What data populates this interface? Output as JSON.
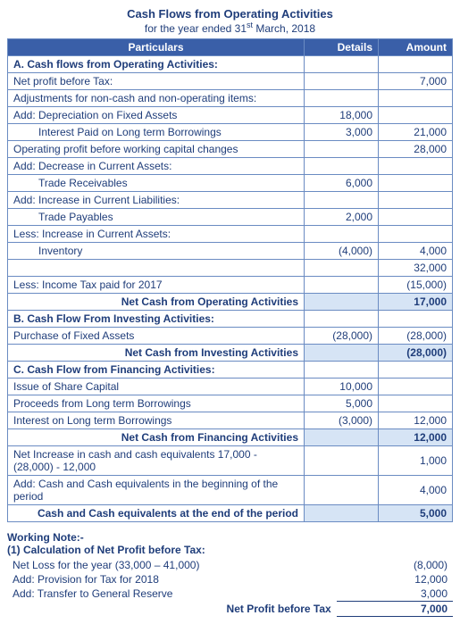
{
  "title": "Cash Flows from Operating Activities",
  "subtitle_prefix": "for the year ended 31",
  "subtitle_suffix": " March, 2018",
  "headers": {
    "particulars": "Particulars",
    "details": "Details",
    "amount": "Amount"
  },
  "sectionA": {
    "head": "A. Cash flows from Operating Activities:",
    "r1": {
      "label": "Net profit before Tax:",
      "amount": "7,000"
    },
    "r2": {
      "label": "Adjustments for non-cash and non-operating items:"
    },
    "r3": {
      "label": "Add: Depreciation on Fixed Assets",
      "details": "18,000"
    },
    "r4": {
      "label": "Interest Paid on Long term Borrowings",
      "details": "3,000",
      "amount": "21,000"
    },
    "r5": {
      "label": "Operating profit before working capital changes",
      "amount": "28,000"
    },
    "r6": {
      "label": "Add: Decrease in Current Assets:"
    },
    "r7": {
      "label": "Trade Receivables",
      "details": "6,000"
    },
    "r8": {
      "label": "Add: Increase in Current Liabilities:"
    },
    "r9": {
      "label": "Trade Payables",
      "details": "2,000"
    },
    "r10": {
      "label": "Less: Increase in Current Assets:"
    },
    "r11": {
      "label": "Inventory",
      "details": "(4,000)",
      "amount": "4,000"
    },
    "r12": {
      "amount": "32,000"
    },
    "r13": {
      "label": "Less: Income Tax paid for 2017",
      "amount": "(15,000)"
    },
    "subtotal": {
      "label": "Net Cash from Operating Activities",
      "amount": "17,000"
    }
  },
  "sectionB": {
    "head": "B. Cash Flow From Investing Activities:",
    "r1": {
      "label": "Purchase of Fixed Assets",
      "details": "(28,000)",
      "amount": "(28,000)"
    },
    "subtotal": {
      "label": "Net Cash from Investing Activities",
      "amount": "(28,000)"
    }
  },
  "sectionC": {
    "head": "C. Cash Flow from Financing Activities:",
    "r1": {
      "label": "Issue of Share Capital",
      "details": "10,000"
    },
    "r2": {
      "label": "Proceeds from Long term Borrowings",
      "details": "5,000"
    },
    "r3": {
      "label": "Interest on Long term Borrowings",
      "details": "(3,000)",
      "amount": "12,000"
    },
    "subtotal": {
      "label": "Net Cash from Financing Activities",
      "amount": "12,000"
    }
  },
  "footer": {
    "r1": {
      "label": "Net Increase in cash and cash equivalents  17,000 - (28,000) - 12,000",
      "amount": "1,000"
    },
    "r2": {
      "label": "Add: Cash and Cash equivalents in the beginning of the period",
      "amount": "4,000"
    },
    "total": {
      "label": "Cash and Cash equivalents at the end of the period",
      "amount": "5,000"
    }
  },
  "wn": {
    "title": "Working Note:-",
    "sub": "(1) Calculation of Net Profit before Tax:",
    "r1": {
      "label": "Net Loss for the year (33,000 – 41,000)",
      "val": "(8,000)"
    },
    "r2": {
      "label": "Add: Provision for Tax for 2018",
      "val": "12,000"
    },
    "r3": {
      "label": "Add: Transfer to General Reserve",
      "val": "3,000"
    },
    "total": {
      "label": "Net Profit before Tax",
      "val": "7,000"
    }
  }
}
